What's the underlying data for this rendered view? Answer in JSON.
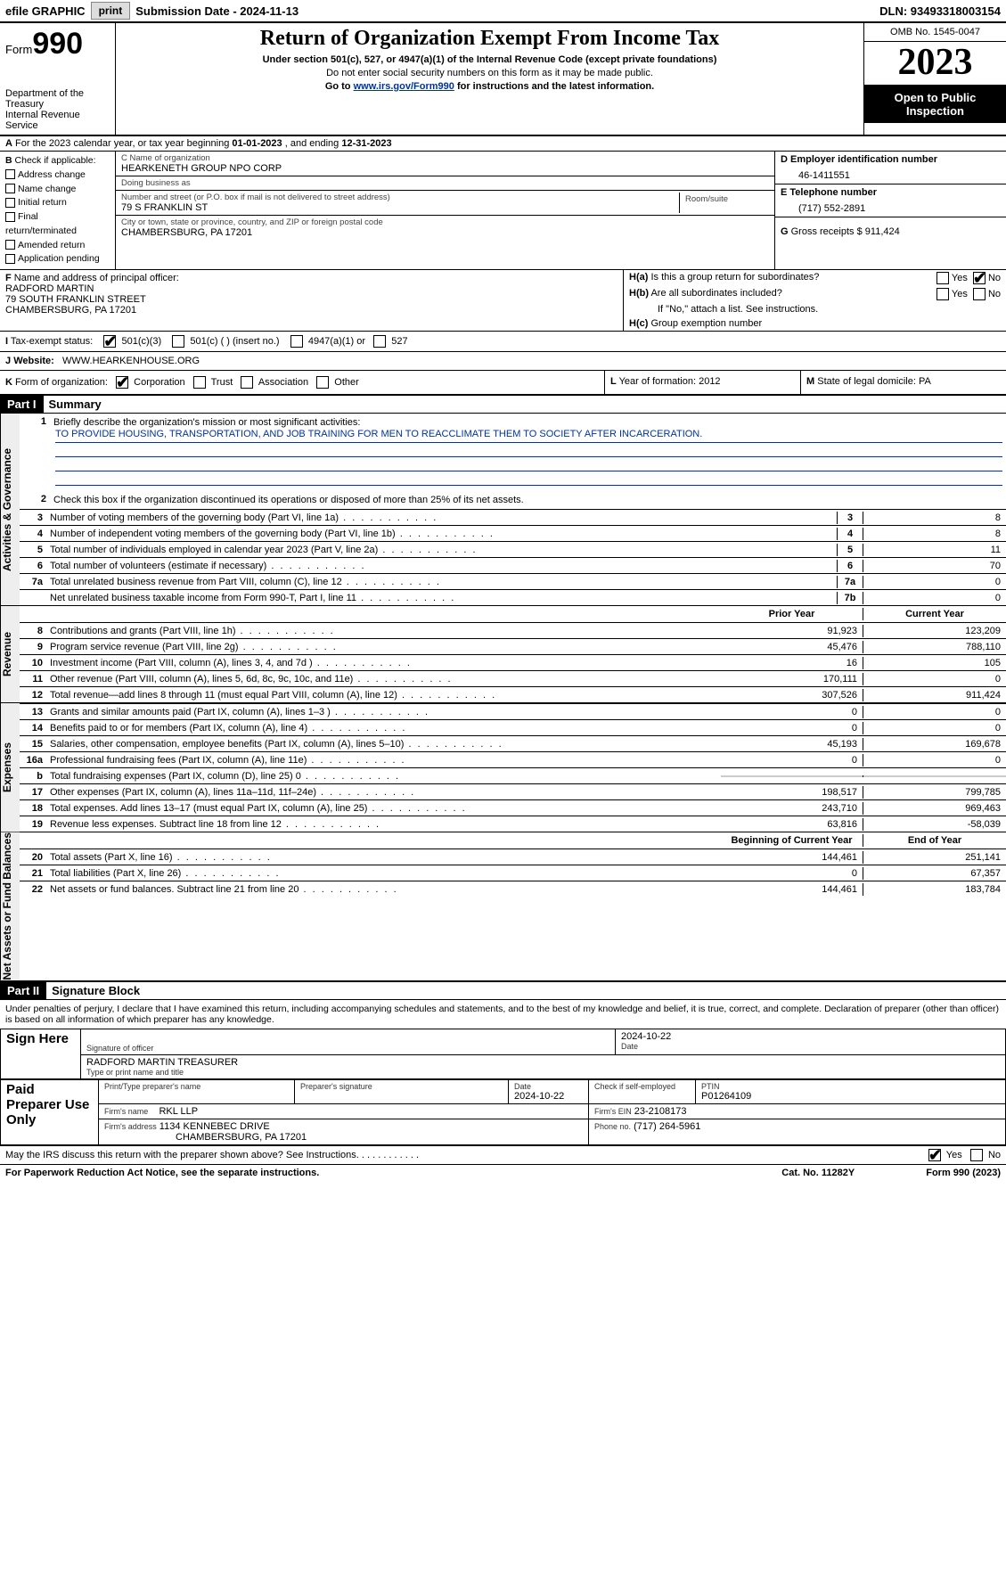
{
  "topbar": {
    "efile_label": "efile GRAPHIC",
    "print_btn": "print",
    "submission": "Submission Date - 2024-11-13",
    "dln": "DLN: 93493318003154"
  },
  "header": {
    "form_prefix": "Form",
    "form_number": "990",
    "dept": "Department of the Treasury",
    "irs": "Internal Revenue Service",
    "title": "Return of Organization Exempt From Income Tax",
    "sub1": "Under section 501(c), 527, or 4947(a)(1) of the Internal Revenue Code (except private foundations)",
    "sub2": "Do not enter social security numbers on this form as it may be made public.",
    "sub3_pre": "Go to ",
    "sub3_link": "www.irs.gov/Form990",
    "sub3_post": " for instructions and the latest information.",
    "omb": "OMB No. 1545-0047",
    "year": "2023",
    "open_label": "Open to Public Inspection"
  },
  "sectionA": {
    "a_label": "A",
    "text_pre": "For the 2023 calendar year, or tax year beginning ",
    "begin": "01-01-2023",
    "mid": " , and ending ",
    "end": "12-31-2023"
  },
  "sectionB": {
    "label": "B",
    "check_label": "Check if applicable:",
    "items": [
      "Address change",
      "Name change",
      "Initial return",
      "Final return/terminated",
      "Amended return",
      "Application pending"
    ]
  },
  "sectionC": {
    "name_label": "C Name of organization",
    "name": "HEARKENETH GROUP NPO CORP",
    "dba_label": "Doing business as",
    "dba": "",
    "street_label": "Number and street (or P.O. box if mail is not delivered to street address)",
    "street": "79 S FRANKLIN ST",
    "suite_label": "Room/suite",
    "suite": "",
    "city_label": "City or town, state or province, country, and ZIP or foreign postal code",
    "city": "CHAMBERSBURG, PA  17201"
  },
  "sectionD": {
    "label": "D Employer identification number",
    "value": "46-1411551"
  },
  "sectionE": {
    "label": "E Telephone number",
    "value": "(717) 552-2891"
  },
  "sectionG": {
    "label": "G",
    "text": "Gross receipts $",
    "value": "911,424"
  },
  "sectionF": {
    "label": "F",
    "text": "Name and address of principal officer:",
    "name": "RADFORD MARTIN",
    "street": "79 SOUTH FRANKLIN STREET",
    "city": "CHAMBERSBURG, PA  17201"
  },
  "sectionH": {
    "a_label": "H(a)",
    "a_text": "Is this a group return for subordinates?",
    "a_yes": "Yes",
    "a_no": "No",
    "b_label": "H(b)",
    "b_text": "Are all subordinates included?",
    "b_note": "If \"No,\" attach a list. See instructions.",
    "c_label": "H(c)",
    "c_text": "Group exemption number",
    "c_value": ""
  },
  "sectionI": {
    "label": "I",
    "text": "Tax-exempt status:",
    "opt1": "501(c)(3)",
    "opt2": "501(c) (  ) (insert no.)",
    "opt3": "4947(a)(1) or",
    "opt4": "527"
  },
  "sectionJ": {
    "label": "J",
    "text": "Website:",
    "value": "WWW.HEARKENHOUSE.ORG"
  },
  "sectionK": {
    "label": "K",
    "text": "Form of organization:",
    "opts": [
      "Corporation",
      "Trust",
      "Association",
      "Other"
    ]
  },
  "sectionL": {
    "label": "L",
    "text": "Year of formation:",
    "value": "2012"
  },
  "sectionM": {
    "label": "M",
    "text": "State of legal domicile:",
    "value": "PA"
  },
  "part1": {
    "hdr": "Part I",
    "title": "Summary",
    "line1_label": "1",
    "line1_text": "Briefly describe the organization's mission or most significant activities:",
    "mission": "TO PROVIDE HOUSING, TRANSPORTATION, AND JOB TRAINING FOR MEN TO REACCLIMATE THEM TO SOCIETY AFTER INCARCERATION.",
    "line2_label": "2",
    "line2_text": "Check this box      if the organization discontinued its operations or disposed of more than 25% of its net assets.",
    "side_ag": "Activities & Governance",
    "side_rev": "Revenue",
    "side_exp": "Expenses",
    "side_na": "Net Assets or Fund Balances",
    "prior_hdr": "Prior Year",
    "current_hdr": "Current Year",
    "begin_hdr": "Beginning of Current Year",
    "end_hdr": "End of Year",
    "lines_ag": [
      {
        "n": "3",
        "d": "Number of voting members of the governing body (Part VI, line 1a)",
        "k": "3",
        "v": "8"
      },
      {
        "n": "4",
        "d": "Number of independent voting members of the governing body (Part VI, line 1b)",
        "k": "4",
        "v": "8"
      },
      {
        "n": "5",
        "d": "Total number of individuals employed in calendar year 2023 (Part V, line 2a)",
        "k": "5",
        "v": "11"
      },
      {
        "n": "6",
        "d": "Total number of volunteers (estimate if necessary)",
        "k": "6",
        "v": "70"
      },
      {
        "n": "7a",
        "d": "Total unrelated business revenue from Part VIII, column (C), line 12",
        "k": "7a",
        "v": "0"
      },
      {
        "n": "",
        "d": "Net unrelated business taxable income from Form 990-T, Part I, line 11",
        "k": "7b",
        "v": "0"
      }
    ],
    "lines_rev": [
      {
        "n": "8",
        "d": "Contributions and grants (Part VIII, line 1h)",
        "p": "91,923",
        "c": "123,209"
      },
      {
        "n": "9",
        "d": "Program service revenue (Part VIII, line 2g)",
        "p": "45,476",
        "c": "788,110"
      },
      {
        "n": "10",
        "d": "Investment income (Part VIII, column (A), lines 3, 4, and 7d )",
        "p": "16",
        "c": "105"
      },
      {
        "n": "11",
        "d": "Other revenue (Part VIII, column (A), lines 5, 6d, 8c, 9c, 10c, and 11e)",
        "p": "170,111",
        "c": "0"
      },
      {
        "n": "12",
        "d": "Total revenue—add lines 8 through 11 (must equal Part VIII, column (A), line 12)",
        "p": "307,526",
        "c": "911,424"
      }
    ],
    "lines_exp": [
      {
        "n": "13",
        "d": "Grants and similar amounts paid (Part IX, column (A), lines 1–3 )",
        "p": "0",
        "c": "0"
      },
      {
        "n": "14",
        "d": "Benefits paid to or for members (Part IX, column (A), line 4)",
        "p": "0",
        "c": "0"
      },
      {
        "n": "15",
        "d": "Salaries, other compensation, employee benefits (Part IX, column (A), lines 5–10)",
        "p": "45,193",
        "c": "169,678"
      },
      {
        "n": "16a",
        "d": "Professional fundraising fees (Part IX, column (A), line 11e)",
        "p": "0",
        "c": "0"
      },
      {
        "n": "b",
        "d": "Total fundraising expenses (Part IX, column (D), line 25) 0",
        "p": "",
        "c": "",
        "shaded": true
      },
      {
        "n": "17",
        "d": "Other expenses (Part IX, column (A), lines 11a–11d, 11f–24e)",
        "p": "198,517",
        "c": "799,785"
      },
      {
        "n": "18",
        "d": "Total expenses. Add lines 13–17 (must equal Part IX, column (A), line 25)",
        "p": "243,710",
        "c": "969,463"
      },
      {
        "n": "19",
        "d": "Revenue less expenses. Subtract line 18 from line 12",
        "p": "63,816",
        "c": "-58,039"
      }
    ],
    "lines_na": [
      {
        "n": "20",
        "d": "Total assets (Part X, line 16)",
        "p": "144,461",
        "c": "251,141"
      },
      {
        "n": "21",
        "d": "Total liabilities (Part X, line 26)",
        "p": "0",
        "c": "67,357"
      },
      {
        "n": "22",
        "d": "Net assets or fund balances. Subtract line 21 from line 20",
        "p": "144,461",
        "c": "183,784"
      }
    ]
  },
  "part2": {
    "hdr": "Part II",
    "title": "Signature Block",
    "declaration": "Under penalties of perjury, I declare that I have examined this return, including accompanying schedules and statements, and to the best of my knowledge and belief, it is true, correct, and complete. Declaration of preparer (other than officer) is based on all information of which preparer has any knowledge."
  },
  "sign": {
    "here_label": "Sign Here",
    "sig_label": "Signature of officer",
    "date_label": "Date",
    "date1": "2024-10-22",
    "name_title": "RADFORD MARTIN  TREASURER",
    "type_label": "Type or print name and title"
  },
  "preparer": {
    "label": "Paid Preparer Use Only",
    "print_label": "Print/Type preparer's name",
    "print_name": "",
    "sig_label": "Preparer's signature",
    "date_label": "Date",
    "date": "2024-10-22",
    "check_label": "Check         if self-employed",
    "ptin_label": "PTIN",
    "ptin": "P01264109",
    "firm_name_label": "Firm's name",
    "firm_name": "RKL LLP",
    "firm_ein_label": "Firm's EIN",
    "firm_ein": "23-2108173",
    "firm_addr_label": "Firm's address",
    "firm_addr1": "1134 KENNEBEC DRIVE",
    "firm_addr2": "CHAMBERSBURG, PA  17201",
    "phone_label": "Phone no.",
    "phone": "(717) 264-5961"
  },
  "discuss": {
    "q": "May the IRS discuss this return with the preparer shown above? See Instructions.",
    "yes": "Yes",
    "no": "No"
  },
  "footer": {
    "left": "For Paperwork Reduction Act Notice, see the separate instructions.",
    "mid": "Cat. No. 11282Y",
    "right_pre": "Form ",
    "right_form": "990",
    "right_post": " (2023)"
  },
  "colors": {
    "link": "#003399",
    "bg": "#ffffff",
    "border": "#000000",
    "shade": "#cccccc"
  }
}
